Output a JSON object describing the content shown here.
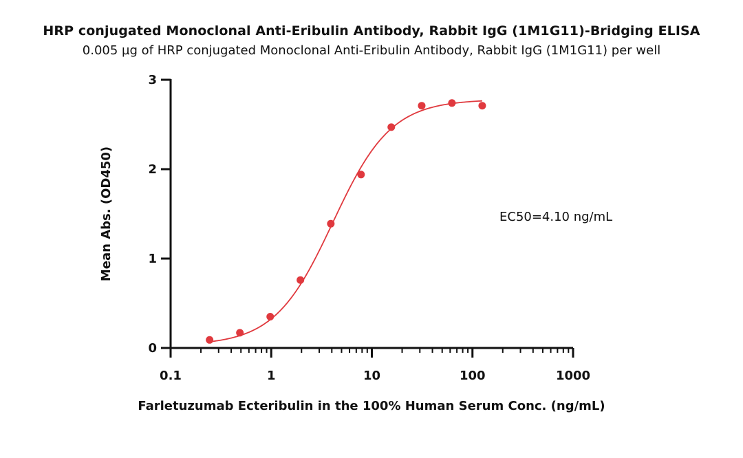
{
  "chart_data": {
    "type": "scatter",
    "title": "HRP conjugated Monoclonal Anti-Eribulin Antibody, Rabbit IgG (1M1G11)-Bridging ELISA",
    "subtitle": "0.005 µg of HRP conjugated Monoclonal Anti-Eribulin Antibody, Rabbit IgG (1M1G11) per well",
    "xlabel": "Farletuzumab Ecteribulin in the 100% Human Serum Conc. (ng/mL)",
    "ylabel": "Mean Abs. (OD450)",
    "xscale": "log",
    "xlim": [
      0.1,
      1000
    ],
    "ylim": [
      0,
      3
    ],
    "xticks": [
      "0.1",
      "1",
      "10",
      "100",
      "1000"
    ],
    "yticks": [
      "0",
      "1",
      "2",
      "3"
    ],
    "grid": false,
    "annotation": "EC50=4.10 ng/mL",
    "colors": {
      "points": "#e0393e",
      "curve": "#e0393e",
      "axis": "#111111"
    },
    "series": [
      {
        "x": [
          0.244,
          0.488,
          0.977,
          1.95,
          3.91,
          7.81,
          15.6,
          31.3,
          62.5,
          125
        ],
        "y": [
          0.09,
          0.17,
          0.35,
          0.76,
          1.39,
          1.94,
          2.47,
          2.71,
          2.74,
          2.71
        ]
      }
    ],
    "fit": {
      "model": "4PL",
      "bottom": 0.03,
      "top": 2.78,
      "ec50": 4.1,
      "hill": 1.5
    }
  }
}
